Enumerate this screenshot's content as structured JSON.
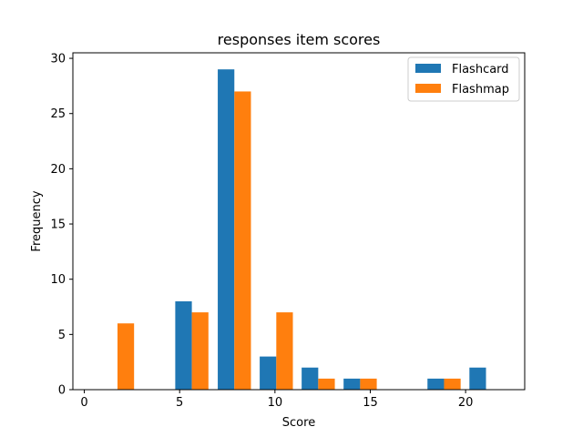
{
  "chart_data": {
    "type": "bar",
    "title": "responses item scores",
    "xlabel": "Score",
    "ylabel": "Frequency",
    "xlim": [
      -0.6,
      23.1
    ],
    "ylim": [
      0,
      30.5
    ],
    "xticks": [
      0,
      5,
      10,
      15,
      20
    ],
    "yticks": [
      0,
      5,
      10,
      15,
      20,
      25,
      30
    ],
    "grid": false,
    "legend_position": "top-right",
    "bin_width": 0.87,
    "series": [
      {
        "name": "Flashcard",
        "color": "#1f77b4",
        "x": [
          0.87,
          2.6,
          4.77,
          7.0,
          9.2,
          11.4,
          13.6,
          15.8,
          18.0,
          20.2
        ],
        "values": [
          0,
          0,
          8,
          29,
          3,
          2,
          1,
          0,
          1,
          2
        ]
      },
      {
        "name": "Flashmap",
        "color": "#ff7f0e",
        "x": [
          1.74,
          3.47,
          5.64,
          7.87,
          10.07,
          12.27,
          14.47,
          16.67,
          18.87,
          21.07
        ],
        "values": [
          6,
          0,
          7,
          27,
          7,
          1,
          1,
          0,
          1,
          0
        ]
      }
    ]
  }
}
